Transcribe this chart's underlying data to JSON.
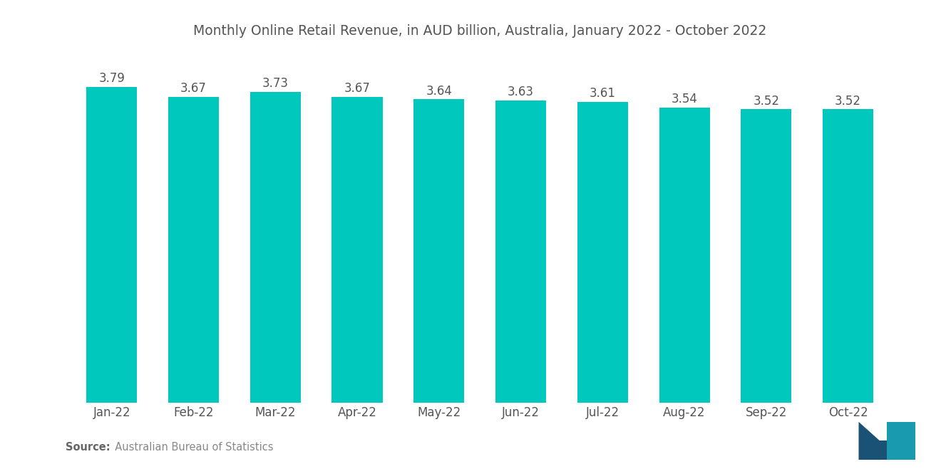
{
  "title": "Monthly Online Retail Revenue, in AUD billion, Australia, January 2022 - October 2022",
  "categories": [
    "Jan-22",
    "Feb-22",
    "Mar-22",
    "Apr-22",
    "May-22",
    "Jun-22",
    "Jul-22",
    "Aug-22",
    "Sep-22",
    "Oct-22"
  ],
  "values": [
    3.79,
    3.67,
    3.73,
    3.67,
    3.64,
    3.63,
    3.61,
    3.54,
    3.52,
    3.52
  ],
  "bar_color": "#00C8BC",
  "background_color": "#ffffff",
  "title_fontsize": 13.5,
  "label_fontsize": 12,
  "tick_fontsize": 12,
  "source_bold": "Source:",
  "source_normal": "  Australian Bureau of Statistics",
  "ylim_min": 0,
  "ylim_max": 4.15,
  "bar_width": 0.62
}
